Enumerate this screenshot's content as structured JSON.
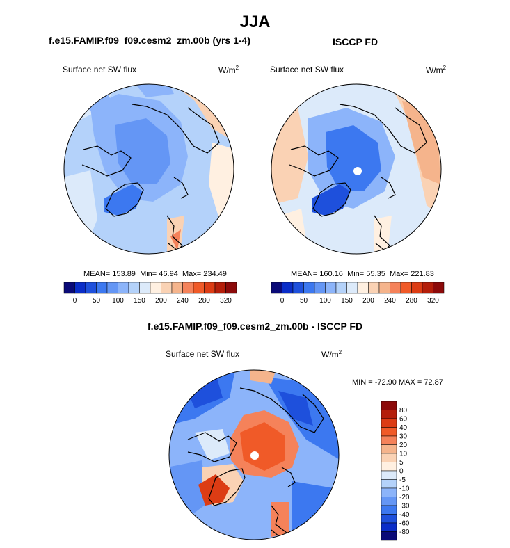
{
  "main_title": "JJA",
  "left_panel": {
    "title": "f.e15.FAMIP.f09_f09.cesm2_zm.00b (yrs 1-4)",
    "variable": "Surface net SW flux",
    "units_base": "W/m",
    "units_exp": "2",
    "mean_label": "MEAN=",
    "mean": "153.89",
    "min_label": "Min=",
    "min": "46.94",
    "max_label": "Max=",
    "max": "234.49"
  },
  "right_panel": {
    "title": "ISCCP FD",
    "variable": "Surface net SW flux",
    "units_base": "W/m",
    "units_exp": "2",
    "mean_label": "MEAN=",
    "mean": "160.16",
    "min_label": "Min=",
    "min": "55.35",
    "max_label": "Max=",
    "max": "221.83"
  },
  "diff_panel": {
    "title": "f.e15.FAMIP.f09_f09.cesm2_zm.00b - ISCCP FD",
    "variable": "Surface net SW flux",
    "units_base": "W/m",
    "units_exp": "2",
    "minmax_text": "MIN = -72.90 MAX =  72.87"
  },
  "colorbar_main": {
    "colors": [
      "#0a0a78",
      "#0a2dc8",
      "#1e50dc",
      "#3c78f0",
      "#6496f5",
      "#8cb4fa",
      "#b4d2fa",
      "#dceafa",
      "#fff0e1",
      "#fad2b4",
      "#f5b48c",
      "#f5825a",
      "#f05a28",
      "#dc3c14",
      "#b41e0a",
      "#8c0a0a"
    ],
    "ticks": [
      "0",
      "50",
      "100",
      "150",
      "200",
      "240",
      "280",
      "320"
    ]
  },
  "colorbar_diff": {
    "colors": [
      "#8c0a0a",
      "#b41e0a",
      "#dc3c14",
      "#f05a28",
      "#f5825a",
      "#f5b48c",
      "#fad2b4",
      "#fff0e1",
      "#dceafa",
      "#b4d2fa",
      "#8cb4fa",
      "#6496f5",
      "#3c78f0",
      "#1e50dc",
      "#0a2dc8",
      "#0a0a78"
    ],
    "ticks": [
      "80",
      "60",
      "40",
      "30",
      "20",
      "10",
      "5",
      "0",
      "-5",
      "-10",
      "-20",
      "-30",
      "-40",
      "-60",
      "-80"
    ]
  }
}
